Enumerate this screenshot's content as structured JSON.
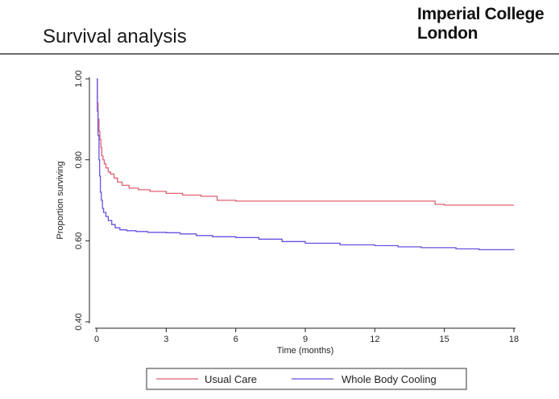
{
  "slide": {
    "title": "Survival analysis",
    "logo_line1": "Imperial College",
    "logo_line2": "London"
  },
  "chart_data": {
    "type": "line",
    "xlabel": "Time (months)",
    "ylabel": "Proportion surviving",
    "xlim": [
      0,
      18
    ],
    "ylim": [
      0.4,
      1.0
    ],
    "xticks": [
      0,
      3,
      6,
      9,
      12,
      15,
      18
    ],
    "xtick_labels": [
      "0",
      "3",
      "6",
      "9",
      "12",
      "15",
      "18"
    ],
    "yticks": [
      0.4,
      0.6,
      0.8,
      1.0
    ],
    "ytick_labels": [
      "0.40",
      "0.60",
      "0.80",
      "1.00"
    ],
    "grid": false,
    "legend_position": "bottom",
    "series": [
      {
        "name": "Usual Care",
        "color": "#e06070",
        "x": [
          0,
          0.03,
          0.06,
          0.1,
          0.14,
          0.18,
          0.22,
          0.27,
          0.33,
          0.4,
          0.5,
          0.6,
          0.75,
          0.9,
          1.1,
          1.4,
          1.8,
          2.3,
          3.0,
          3.7,
          4.5,
          5.2,
          6.0,
          8.0,
          10.0,
          12.0,
          14.0,
          14.6,
          15.0,
          16.0,
          18.0
        ],
        "y": [
          1.0,
          0.94,
          0.9,
          0.87,
          0.85,
          0.83,
          0.81,
          0.8,
          0.79,
          0.78,
          0.77,
          0.765,
          0.755,
          0.745,
          0.737,
          0.73,
          0.726,
          0.722,
          0.717,
          0.713,
          0.71,
          0.7,
          0.698,
          0.698,
          0.698,
          0.698,
          0.698,
          0.69,
          0.688,
          0.688,
          0.688
        ]
      },
      {
        "name": "Whole Body Cooling",
        "color": "#6a50e0",
        "x": [
          0,
          0.03,
          0.06,
          0.1,
          0.13,
          0.16,
          0.2,
          0.25,
          0.3,
          0.4,
          0.5,
          0.65,
          0.8,
          1.0,
          1.3,
          1.7,
          2.2,
          3.0,
          3.6,
          4.3,
          5.0,
          6.0,
          7.0,
          8.0,
          9.0,
          10.5,
          12.0,
          13.0,
          14.0,
          15.5,
          16.5,
          18.0
        ],
        "y": [
          1.0,
          0.92,
          0.86,
          0.8,
          0.76,
          0.72,
          0.7,
          0.68,
          0.67,
          0.66,
          0.65,
          0.64,
          0.632,
          0.627,
          0.625,
          0.623,
          0.621,
          0.62,
          0.617,
          0.613,
          0.61,
          0.608,
          0.604,
          0.598,
          0.594,
          0.59,
          0.588,
          0.585,
          0.583,
          0.58,
          0.578,
          0.577
        ]
      }
    ]
  }
}
